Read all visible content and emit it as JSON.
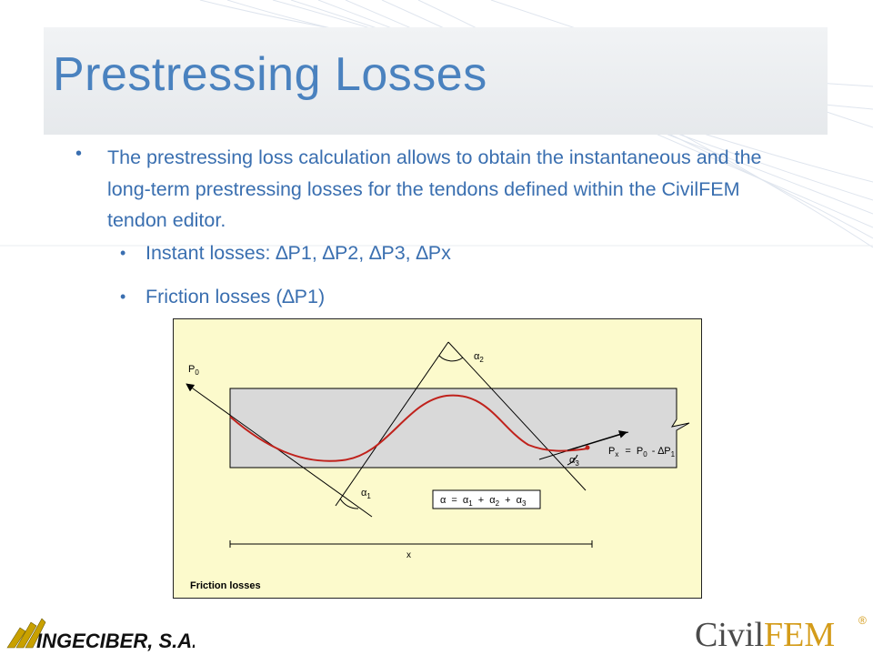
{
  "slide": {
    "title": "Prestressing Losses",
    "bullet_main": "The prestressing loss calculation allows to obtain the instantaneous and the long-term prestressing losses for the tendons defined within the CivilFEM tendon editor.",
    "sub_bullets": [
      "Instant losses: ∆P1, ∆P2, ∆P3, ∆Px",
      "Friction losses (∆P1)"
    ],
    "bullet_glyph": "•"
  },
  "figure": {
    "caption": "Friction losses",
    "p0_label": "P",
    "p0_sub": "0",
    "alpha1": "α",
    "alpha1_sub": "1",
    "alpha2": "α",
    "alpha2_sub": "2",
    "alpha3": "α",
    "alpha3_sub": "3",
    "px_equation": {
      "P": "P",
      "x_sub": "x",
      "eq": "=",
      "p0": "P",
      "p0_sub": "0",
      "minus": "- ∆P",
      "p1_sub": "1"
    },
    "alpha_equation": {
      "a": "α",
      "eq": "=",
      "a1": "α",
      "s1": "1",
      "plus1": "+",
      "a2": "α",
      "s2": "2",
      "plus2": "+",
      "a3": "α",
      "s3": "3"
    },
    "x_label": "x",
    "colors": {
      "background": "#fcfacc",
      "beam": "#d9d9d9",
      "tendon": "#c0221c"
    }
  },
  "footer": {
    "left_logo": "INGECIBER, S.A.",
    "right_logo_a": "Civil",
    "right_logo_b": "FEM",
    "registered": "®"
  },
  "colors": {
    "title": "#4a82bf",
    "body_text": "#3a6fb0"
  }
}
